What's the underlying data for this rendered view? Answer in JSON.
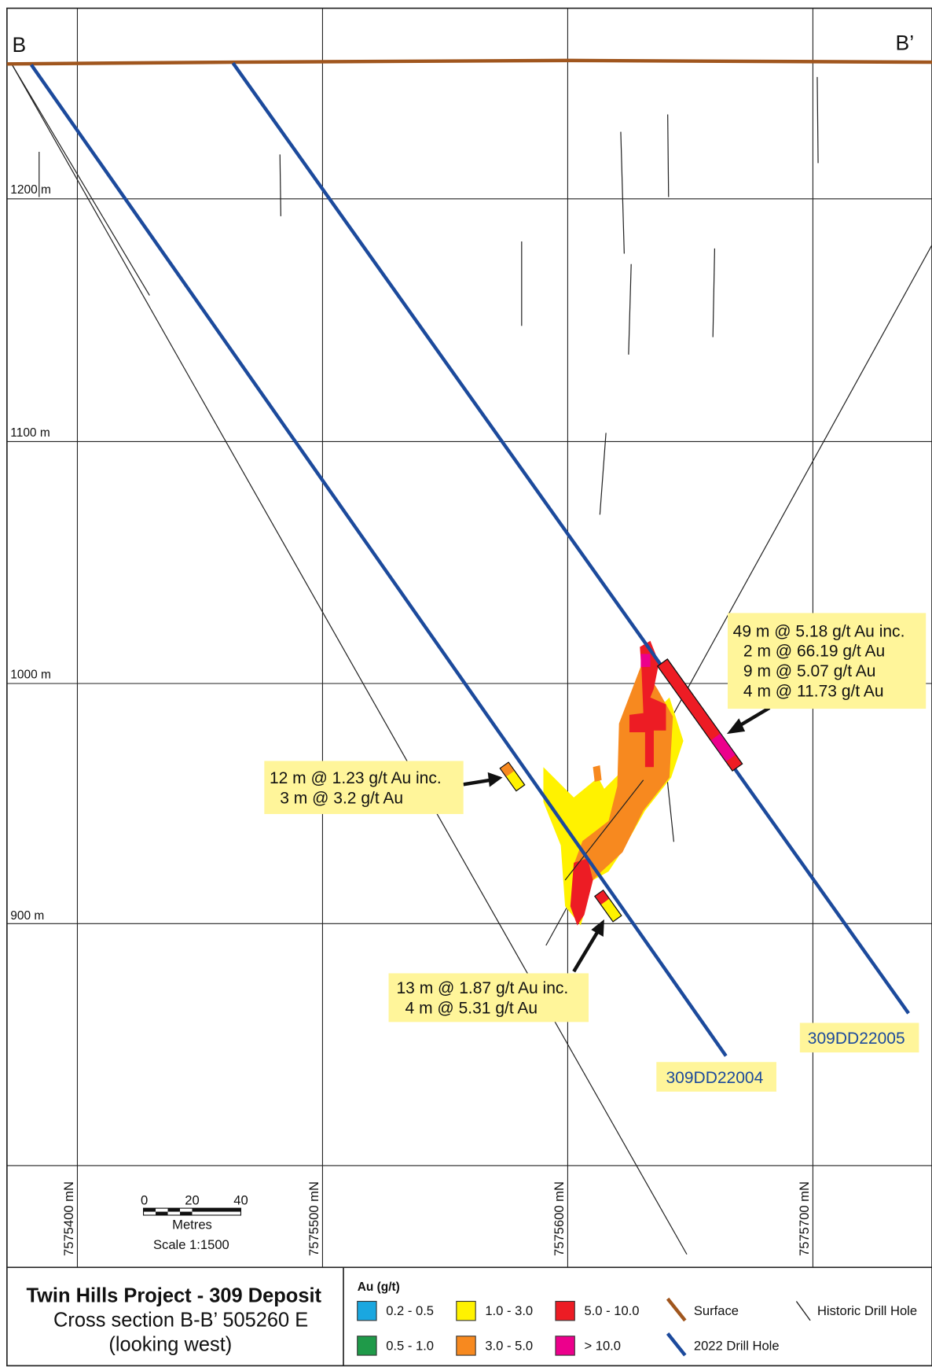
{
  "section": {
    "start": "B",
    "end": "B’"
  },
  "elevations": [
    "1200 m",
    "1100 m",
    "1000 m",
    "900 m"
  ],
  "northings": [
    "7575400 mN",
    "7575500 mN",
    "7575600 mN",
    "7575700 mN"
  ],
  "intercepts": [
    {
      "lines": [
        "49 m @ 5.18 g/t Au inc.",
        "2 m @ 66.19 g/t Au",
        "9 m @ 5.07 g/t Au",
        "4 m @ 11.73 g/t Au"
      ]
    },
    {
      "lines": [
        "12 m @ 1.23 g/t Au inc.",
        "3 m @ 3.2 g/t Au"
      ]
    },
    {
      "lines": [
        "13 m @ 1.87 g/t Au inc.",
        "4 m @ 5.31 g/t Au"
      ]
    }
  ],
  "drill_holes": [
    "309DD22004",
    "309DD22005"
  ],
  "scale": {
    "ticks": [
      "0",
      "20",
      "40"
    ],
    "unit": "Metres",
    "ratio": "Scale 1:1500"
  },
  "title_block": {
    "title": "Twin Hills Project - 309 Deposit",
    "subtitle": "Cross section B-B’ 505260 E",
    "note": "(looking west)"
  },
  "legend": {
    "title": "Au (g/t)",
    "grades": [
      {
        "label": "0.2 - 0.5",
        "color": "#1aa7e0"
      },
      {
        "label": "0.5 - 1.0",
        "color": "#1f9a49"
      },
      {
        "label": "1.0 - 3.0",
        "color": "#fff200"
      },
      {
        "label": "3.0 - 5.0",
        "color": "#f7891f"
      },
      {
        "label": "5.0 - 10.0",
        "color": "#ed1c24"
      },
      {
        "label": "> 10.0",
        "color": "#ec008c"
      }
    ],
    "surface": "Surface",
    "drill_2022": "2022 Drill Hole",
    "historic": "Historic Drill Hole"
  }
}
